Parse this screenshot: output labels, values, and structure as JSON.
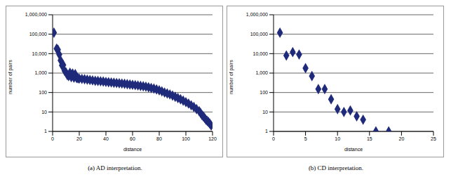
{
  "chart_data": [
    {
      "type": "scatter",
      "title": "(a) AD interpretation.",
      "x_label": "distance",
      "y_label": "number of pairs",
      "log": "y",
      "grid": true,
      "color": "#1f2a7a",
      "marker": "diamond",
      "xlim": [
        0,
        120
      ],
      "xticks": [
        0,
        20,
        40,
        60,
        80,
        100,
        120
      ],
      "ylim": [
        1,
        1000000
      ],
      "yticks": [
        1,
        10,
        100,
        {
          "value": 1000,
          "label": "1,000"
        },
        {
          "value": 10000,
          "label": "10,000"
        },
        {
          "value": 100000,
          "label": "100,000"
        },
        {
          "value": 1000000,
          "label": "1,000,000"
        }
      ],
      "x": [
        1,
        3,
        4,
        5,
        6,
        7,
        8,
        9,
        10,
        11,
        12,
        13,
        14,
        15,
        16,
        17,
        18,
        19,
        20,
        22,
        24,
        26,
        28,
        30,
        32,
        34,
        36,
        38,
        40,
        42,
        44,
        46,
        48,
        50,
        52,
        54,
        56,
        58,
        60,
        62,
        64,
        66,
        68,
        70,
        72,
        74,
        76,
        78,
        80,
        82,
        84,
        86,
        88,
        90,
        92,
        94,
        96,
        98,
        100,
        102,
        104,
        106,
        108,
        110,
        111,
        112,
        113,
        114,
        115,
        116,
        117,
        118,
        119
      ],
      "values": [
        120000,
        18000,
        16000,
        9000,
        4500,
        2500,
        2600,
        1300,
        1100,
        800,
        700,
        1050,
        620,
        950,
        580,
        880,
        560,
        540,
        520,
        500,
        480,
        460,
        440,
        420,
        400,
        390,
        380,
        370,
        350,
        340,
        330,
        320,
        310,
        300,
        290,
        280,
        270,
        260,
        250,
        240,
        230,
        220,
        210,
        200,
        185,
        170,
        160,
        145,
        130,
        115,
        100,
        90,
        80,
        70,
        60,
        52,
        45,
        38,
        32,
        27,
        22,
        18,
        14,
        11,
        9,
        7,
        6,
        5,
        4,
        3.5,
        3,
        2.5,
        2
      ]
    },
    {
      "type": "scatter",
      "title": "(b) CD interpretation.",
      "x_label": "distance",
      "y_label": "number of pairs",
      "log": "y",
      "grid": true,
      "color": "#1f2a7a",
      "marker": "diamond",
      "xlim": [
        0,
        25
      ],
      "xticks": [
        0,
        5,
        10,
        15,
        20,
        25
      ],
      "ylim": [
        1,
        1000000
      ],
      "yticks": [
        1,
        10,
        100,
        {
          "value": 1000,
          "label": "1,000"
        },
        {
          "value": 10000,
          "label": "10,000"
        },
        {
          "value": 100000,
          "label": "100,000"
        },
        {
          "value": 1000000,
          "label": "1,000,000"
        }
      ],
      "x": [
        1,
        2,
        3,
        4,
        5,
        6,
        7,
        8,
        9,
        10,
        11,
        12,
        13,
        14,
        16,
        18
      ],
      "values": [
        120000,
        8000,
        12000,
        9000,
        1800,
        700,
        150,
        150,
        45,
        14,
        10,
        12,
        6,
        4,
        1,
        1
      ]
    }
  ]
}
